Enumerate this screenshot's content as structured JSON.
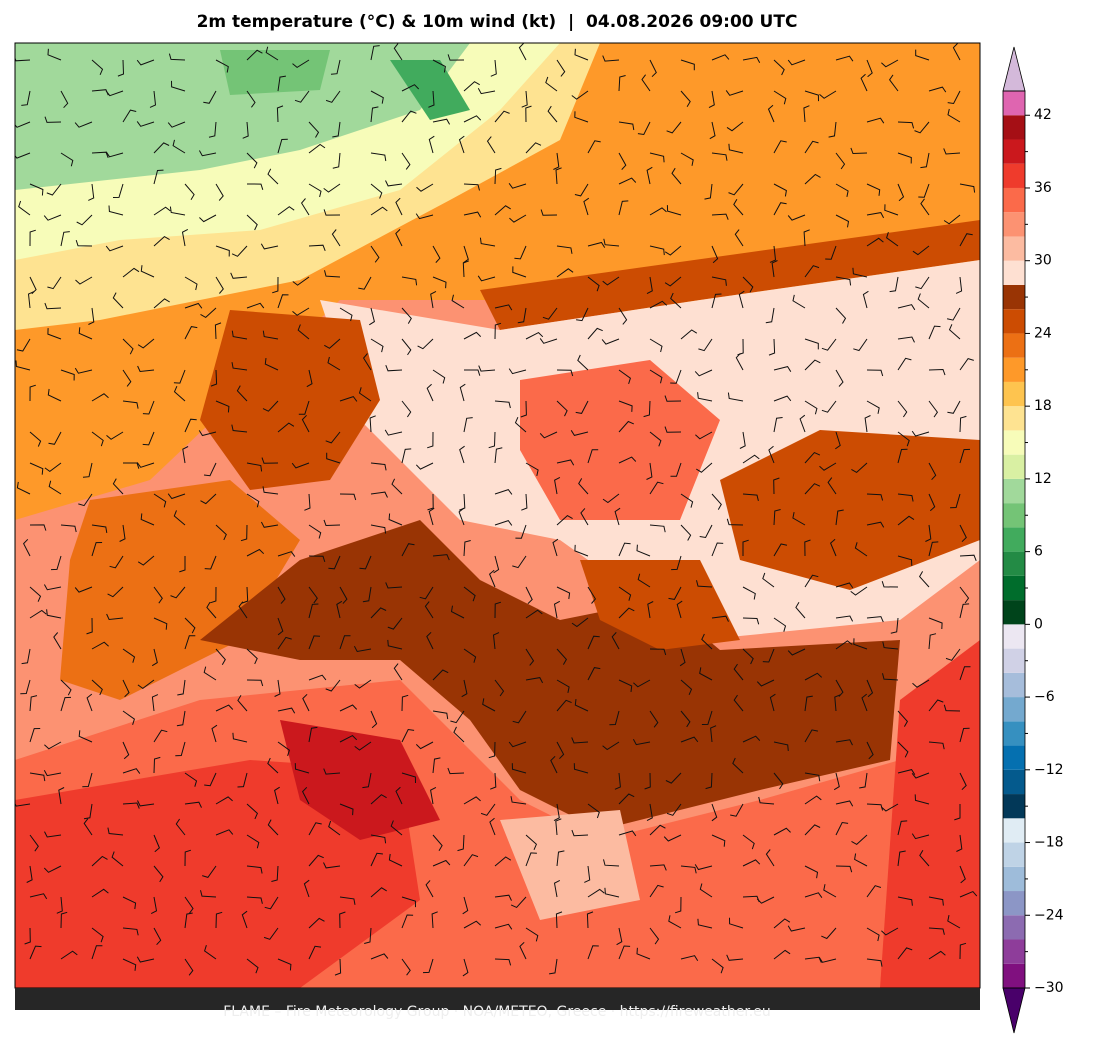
{
  "title": "2m temperature (°C) & 10m wind (kt)  |  04.08.2026 09:00 UTC",
  "footer": "FLAME – Fire Meteorology Group · NOA/METEO, Greece · https://fireweather.eu",
  "colorbar": {
    "levels": [
      -30,
      -28,
      -26,
      -24,
      -22,
      -20,
      -18,
      -16,
      -14,
      -12,
      -10,
      -8,
      -6,
      -4,
      -2,
      0,
      2,
      4,
      6,
      8,
      10,
      12,
      14,
      16,
      18,
      20,
      22,
      24,
      26,
      28,
      30,
      32,
      34,
      36,
      38,
      40,
      42,
      44
    ],
    "colors": [
      "#80107f",
      "#8e3d9a",
      "#8c6bb1",
      "#8c96c6",
      "#9ebcda",
      "#bfd3e6",
      "#e0ecf4",
      "#023858",
      "#045a8d",
      "#0570b0",
      "#3690c0",
      "#74a9cf",
      "#a6bddb",
      "#d0d1e6",
      "#ece7f2",
      "#00441b",
      "#006d2c",
      "#238b45",
      "#41ab5d",
      "#74c476",
      "#a1d99b",
      "#d9f0a3",
      "#f7fcb9",
      "#fee391",
      "#fec44f",
      "#fe9929",
      "#ec7014",
      "#cc4c02",
      "#993404",
      "#fee0d2",
      "#fcbba1",
      "#fc9272",
      "#fb6a4a",
      "#ef3b2c",
      "#cb181d",
      "#a50f15",
      "#df65b0"
    ],
    "extend_min_color": "#49006a",
    "extend_max_color": "#d4b9da",
    "ticks": [
      {
        "value": -30,
        "label": "−30"
      },
      {
        "value": -24,
        "label": "−24"
      },
      {
        "value": -18,
        "label": "−18"
      },
      {
        "value": -12,
        "label": "−12"
      },
      {
        "value": -6,
        "label": "−6"
      },
      0,
      6,
      12,
      18,
      24,
      30,
      36,
      42
    ],
    "minor_ticks": [
      -27,
      -21,
      -15,
      -9,
      -3,
      3,
      9,
      15,
      21,
      27,
      33,
      39
    ]
  }
}
